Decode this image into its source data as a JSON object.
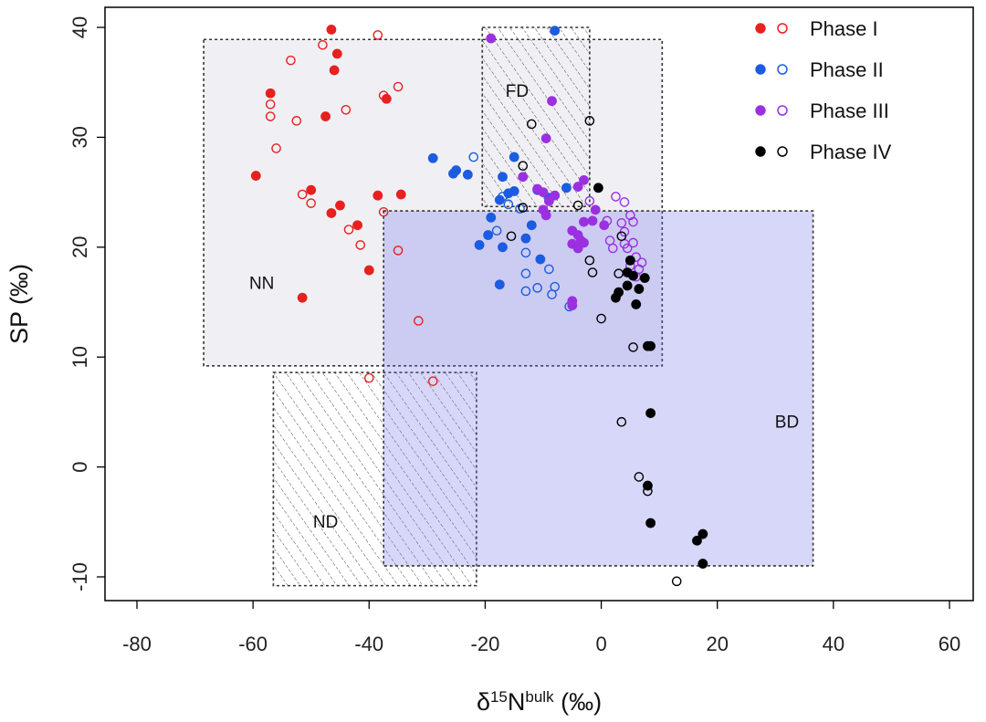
{
  "chart_data": {
    "type": "scatter",
    "xlabel": {
      "base": "δ",
      "sup1": "15",
      "mid": "N",
      "sup2": "bulk",
      "tail": " (‰)"
    },
    "ylabel": "SP (‰)",
    "xlim": [
      -80,
      60
    ],
    "ylim": [
      -10,
      40
    ],
    "xticks": [
      -80,
      -60,
      -40,
      -20,
      0,
      20,
      40,
      60
    ],
    "yticks": [
      -10,
      0,
      10,
      20,
      30,
      40
    ],
    "xtick_labels": [
      "-80",
      "-60",
      "-40",
      "-20",
      "0",
      "20",
      "40",
      "60"
    ],
    "ytick_labels": [
      "-10",
      "0",
      "10",
      "20",
      "30",
      "40"
    ],
    "grid": false,
    "legend_position": "top-right",
    "regions": [
      {
        "label": "NN",
        "x": [
          -68.5,
          10.5
        ],
        "y": [
          9.2,
          38.9
        ],
        "style": "gray-fill",
        "label_pos": [
          -58.5,
          16.2
        ]
      },
      {
        "label": "FD",
        "x": [
          -20.5,
          -2.0
        ],
        "y": [
          23.7,
          40.0
        ],
        "style": "hatched",
        "label_pos": [
          -14.5,
          33.7
        ]
      },
      {
        "label": "ND",
        "x": [
          -56.5,
          -21.5
        ],
        "y": [
          -10.8,
          8.6
        ],
        "style": "hatched",
        "label_pos": [
          -47.5,
          -5.5
        ]
      },
      {
        "label": "BD",
        "x": [
          -37.5,
          36.5
        ],
        "y": [
          -9.0,
          23.3
        ],
        "style": "blue-fill",
        "label_pos": [
          32.0,
          3.6
        ]
      }
    ],
    "series": [
      {
        "name": "Phase I",
        "color": "#e8201f",
        "filled": [
          [
            -46.5,
            39.8
          ],
          [
            -45.5,
            37.6
          ],
          [
            -46,
            36.1
          ],
          [
            -57,
            34
          ],
          [
            -37,
            33.5
          ],
          [
            -47.5,
            31.9
          ],
          [
            -59.5,
            26.5
          ],
          [
            -50,
            25.2
          ],
          [
            -34.5,
            24.8
          ],
          [
            -38.5,
            24.7
          ],
          [
            -45,
            23.8
          ],
          [
            -46.5,
            23.1
          ],
          [
            -42,
            22.0
          ],
          [
            -40,
            17.9
          ],
          [
            -51.5,
            15.4
          ]
        ],
        "open": [
          [
            -48,
            38.4
          ],
          [
            -38.5,
            39.3
          ],
          [
            -53.5,
            37
          ],
          [
            -35,
            34.6
          ],
          [
            -37.5,
            33.8
          ],
          [
            -57,
            33
          ],
          [
            -57,
            31.9
          ],
          [
            -52.5,
            31.5
          ],
          [
            -44,
            32.5
          ],
          [
            -56,
            29
          ],
          [
            -51.5,
            24.8
          ],
          [
            -50,
            24
          ],
          [
            -37.5,
            23.2
          ],
          [
            -43.5,
            21.6
          ],
          [
            -41.5,
            20.2
          ],
          [
            -35,
            19.7
          ],
          [
            -31.5,
            13.3
          ],
          [
            -40,
            8.1
          ],
          [
            -29,
            7.8
          ]
        ]
      },
      {
        "name": "Phase II",
        "color": "#1c5ce0",
        "filled": [
          [
            -8,
            39.7
          ],
          [
            -29,
            28.1
          ],
          [
            -15,
            28.2
          ],
          [
            -25.5,
            26.7
          ],
          [
            -25,
            27
          ],
          [
            -23,
            26.6
          ],
          [
            -17,
            26.4
          ],
          [
            -11,
            25.2
          ],
          [
            -15,
            25.1
          ],
          [
            -16,
            24.9
          ],
          [
            -17.5,
            24.3
          ],
          [
            -9,
            24.5
          ],
          [
            -6,
            25.4
          ],
          [
            -19,
            22.7
          ],
          [
            -12,
            22.0
          ],
          [
            -19.5,
            21.1
          ],
          [
            -13,
            20.8
          ],
          [
            -17,
            20.0
          ],
          [
            -21,
            20.2
          ],
          [
            -10.5,
            18.9
          ],
          [
            -17.5,
            16.6
          ]
        ],
        "open": [
          [
            -22,
            28.2
          ],
          [
            -17,
            24.6
          ],
          [
            -14,
            23.5
          ],
          [
            -18,
            21.5
          ],
          [
            -13,
            19.5
          ],
          [
            -13,
            17.6
          ],
          [
            -9,
            18.0
          ],
          [
            -11,
            16.3
          ],
          [
            -13,
            16.0
          ],
          [
            -8,
            16.4
          ],
          [
            -8.5,
            15.7
          ],
          [
            -5.5,
            14.6
          ],
          [
            -16,
            23.9
          ]
        ]
      },
      {
        "name": "Phase III",
        "color": "#9b30e0",
        "filled": [
          [
            -19,
            39
          ],
          [
            -8.5,
            33.3
          ],
          [
            -9.5,
            29.9
          ],
          [
            -13.5,
            26.4
          ],
          [
            -4,
            25.5
          ],
          [
            -3,
            26.1
          ],
          [
            -8,
            24.7
          ],
          [
            -9,
            24.2
          ],
          [
            -10,
            25
          ],
          [
            -11,
            25.3
          ],
          [
            -10,
            23.4
          ],
          [
            -9.5,
            22.9
          ],
          [
            -3,
            22.3
          ],
          [
            -1.5,
            22.4
          ],
          [
            -1,
            23.4
          ],
          [
            0.5,
            22.0
          ],
          [
            -5,
            21.5
          ],
          [
            -4,
            21.1
          ],
          [
            -3.5,
            20.6
          ],
          [
            -5,
            20.3
          ],
          [
            -3,
            20.4
          ],
          [
            -4,
            19.9
          ],
          [
            -5,
            15.1
          ],
          [
            -5,
            14.7
          ]
        ],
        "open": [
          [
            2.5,
            24.6
          ],
          [
            4,
            24.1
          ],
          [
            5,
            22.9
          ],
          [
            5.5,
            22.3
          ],
          [
            3.5,
            22.2
          ],
          [
            4,
            21.4
          ],
          [
            1.5,
            20.6
          ],
          [
            4,
            20.3
          ],
          [
            2,
            19.9
          ],
          [
            5.5,
            20.4
          ],
          [
            4.5,
            19.9
          ],
          [
            6,
            19.1
          ],
          [
            5,
            18.3
          ],
          [
            7,
            18.6
          ],
          [
            6.5,
            18.0
          ],
          [
            -2,
            24.2
          ],
          [
            1,
            22.4
          ],
          [
            6,
            17.3
          ]
        ]
      },
      {
        "name": "Phase IV",
        "color": "#000000",
        "filled": [
          [
            -0.5,
            25.4
          ],
          [
            5,
            18.8
          ],
          [
            4.5,
            17.7
          ],
          [
            5.5,
            17.4
          ],
          [
            7.5,
            17.2
          ],
          [
            6.5,
            16.2
          ],
          [
            4.5,
            16.5
          ],
          [
            3,
            15.9
          ],
          [
            2.5,
            15.4
          ],
          [
            6,
            14.8
          ],
          [
            8,
            11.0
          ],
          [
            8.5,
            11.0
          ],
          [
            8.5,
            4.9
          ],
          [
            8,
            -1.7
          ],
          [
            8.5,
            -5.1
          ],
          [
            16.5,
            -6.7
          ],
          [
            17.5,
            -6.1
          ],
          [
            17.5,
            -8.8
          ]
        ],
        "open": [
          [
            -12,
            31.2
          ],
          [
            -2,
            31.5
          ],
          [
            -13.5,
            27.4
          ],
          [
            -13.5,
            23.6
          ],
          [
            -4,
            23.8
          ],
          [
            -15.5,
            21.0
          ],
          [
            -2,
            18.8
          ],
          [
            -1.5,
            17.7
          ],
          [
            3,
            17.6
          ],
          [
            3.5,
            21.0
          ],
          [
            0,
            13.5
          ],
          [
            5.5,
            10.9
          ],
          [
            3.5,
            4.1
          ],
          [
            6.5,
            -0.9
          ],
          [
            8,
            -2.2
          ],
          [
            13,
            -10.4
          ]
        ]
      }
    ]
  }
}
